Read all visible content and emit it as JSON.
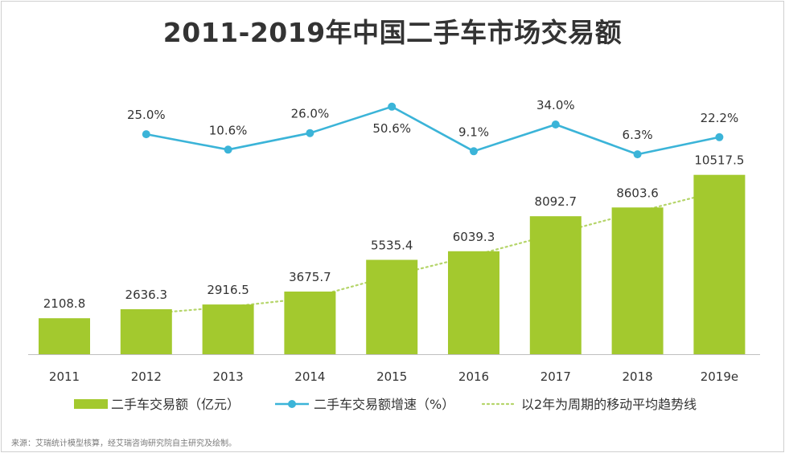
{
  "chart_data": {
    "type": "bar+line",
    "title": "2011-2019年中国二手车市场交易额",
    "categories": [
      "2011",
      "2012",
      "2013",
      "2014",
      "2015",
      "2016",
      "2017",
      "2018",
      "2019e"
    ],
    "series": [
      {
        "name": "二手车交易额（亿元）",
        "type": "bar",
        "color": "#a3c92e",
        "values": [
          2108.8,
          2636.3,
          2916.5,
          3675.7,
          5535.4,
          6039.3,
          8092.7,
          8603.6,
          10517.5
        ],
        "labels": [
          "2108.8",
          "2636.3",
          "2916.5",
          "3675.7",
          "5535.4",
          "6039.3",
          "8092.7",
          "8603.6",
          "10517.5"
        ]
      },
      {
        "name": "二手车交易额增速（%）",
        "type": "line",
        "color": "#3bb4d8",
        "values": [
          null,
          25.0,
          10.6,
          26.0,
          50.6,
          9.1,
          34.0,
          6.3,
          22.2
        ],
        "labels": [
          "",
          "25.0%",
          "10.6%",
          "26.0%",
          "50.6%",
          "9.1%",
          "34.0%",
          "6.3%",
          "22.2%"
        ]
      },
      {
        "name": "以2年为周期的移动平均趋势线",
        "type": "trendline",
        "color": "#b5d56a",
        "values": [
          null,
          2372.55,
          2776.4,
          3296.1,
          4605.55,
          5787.35,
          7066.0,
          8348.15,
          9560.55
        ]
      }
    ],
    "ylim_bar": [
      0,
      11000
    ],
    "ylim_rate": [
      0,
      60
    ],
    "legend_position": "bottom",
    "grid": false
  },
  "source_note": "来源：艾瑞统计模型核算，经艾瑞咨询研究院自主研究及绘制。"
}
